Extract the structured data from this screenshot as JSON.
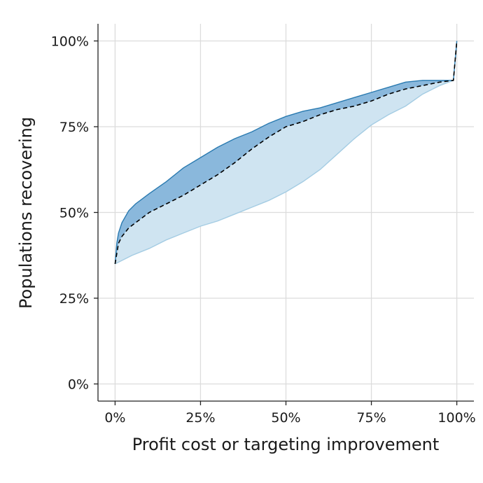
{
  "chart_data": {
    "type": "area",
    "title": "",
    "xlabel": "Profit cost or targeting improvement",
    "ylabel": "Populations recovering",
    "xlim": [
      -0.05,
      1.05
    ],
    "ylim": [
      -0.05,
      1.05
    ],
    "x_ticks": [
      0,
      0.25,
      0.5,
      0.75,
      1.0
    ],
    "x_tick_labels": [
      "0%",
      "25%",
      "50%",
      "75%",
      "100%"
    ],
    "y_ticks": [
      0,
      0.25,
      0.5,
      0.75,
      1.0
    ],
    "y_tick_labels": [
      "0%",
      "25%",
      "50%",
      "75%",
      "100%"
    ],
    "grid": true,
    "colors": {
      "light_band_fill": "#cfe4f1",
      "light_band_edge": "#a4cce3",
      "dark_band_fill": "#8ab8dc",
      "dark_band_edge": "#2a7ab0",
      "median_line": "#000000"
    },
    "series": [
      {
        "role": "upper",
        "x": [
          0,
          0.005,
          0.01,
          0.02,
          0.04,
          0.06,
          0.08,
          0.1,
          0.15,
          0.2,
          0.25,
          0.3,
          0.35,
          0.4,
          0.45,
          0.5,
          0.55,
          0.6,
          0.65,
          0.7,
          0.75,
          0.8,
          0.85,
          0.9,
          0.95,
          0.99,
          1.0
        ],
        "values": [
          0.35,
          0.41,
          0.44,
          0.47,
          0.505,
          0.525,
          0.54,
          0.555,
          0.59,
          0.63,
          0.66,
          0.69,
          0.715,
          0.735,
          0.76,
          0.78,
          0.795,
          0.805,
          0.82,
          0.835,
          0.85,
          0.865,
          0.88,
          0.885,
          0.885,
          0.885,
          1.0
        ]
      },
      {
        "role": "median",
        "x": [
          0,
          0.005,
          0.01,
          0.02,
          0.04,
          0.06,
          0.08,
          0.1,
          0.15,
          0.2,
          0.25,
          0.3,
          0.35,
          0.4,
          0.45,
          0.5,
          0.55,
          0.6,
          0.65,
          0.7,
          0.75,
          0.8,
          0.85,
          0.9,
          0.95,
          0.99,
          1.0
        ],
        "values": [
          0.35,
          0.38,
          0.41,
          0.43,
          0.455,
          0.47,
          0.485,
          0.5,
          0.525,
          0.55,
          0.58,
          0.61,
          0.645,
          0.685,
          0.72,
          0.75,
          0.765,
          0.785,
          0.8,
          0.81,
          0.825,
          0.845,
          0.86,
          0.87,
          0.88,
          0.885,
          1.0
        ]
      },
      {
        "role": "lower",
        "x": [
          0,
          0.05,
          0.1,
          0.15,
          0.2,
          0.25,
          0.3,
          0.35,
          0.4,
          0.45,
          0.5,
          0.55,
          0.6,
          0.65,
          0.7,
          0.75,
          0.8,
          0.85,
          0.9,
          0.95,
          0.99,
          1.0
        ],
        "values": [
          0.35,
          0.375,
          0.395,
          0.42,
          0.44,
          0.46,
          0.475,
          0.495,
          0.515,
          0.535,
          0.56,
          0.59,
          0.625,
          0.67,
          0.715,
          0.755,
          0.785,
          0.81,
          0.845,
          0.87,
          0.885,
          1.0
        ]
      }
    ]
  }
}
